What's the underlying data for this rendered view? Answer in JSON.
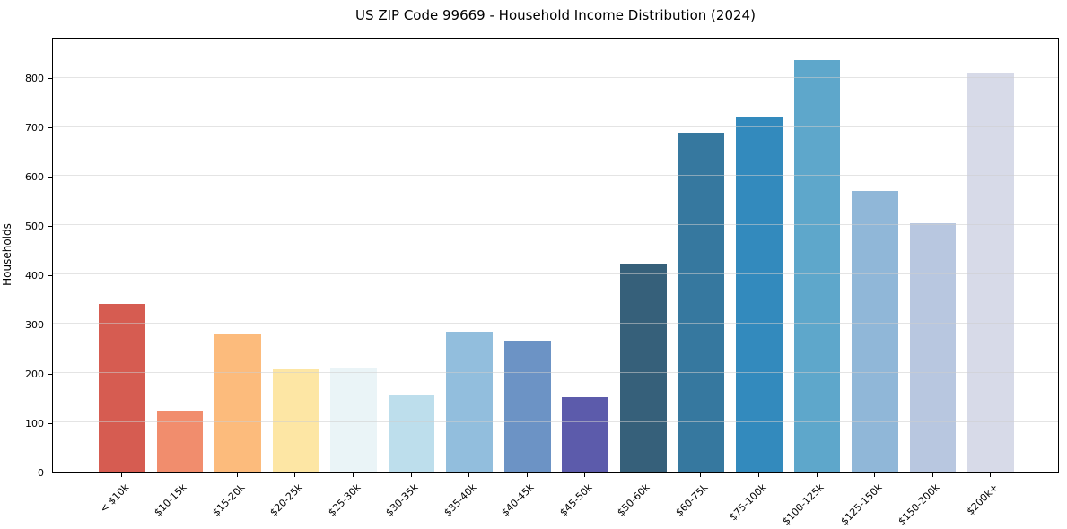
{
  "title": "US ZIP Code 99669 - Household Income Distribution (2024)",
  "chart_data": {
    "type": "bar",
    "title": "US ZIP Code 99669 - Household Income Distribution (2024)",
    "xlabel": "",
    "ylabel": "Households",
    "categories": [
      "< $10k",
      "$10-15k",
      "$15-20k",
      "$20-25k",
      "$25-30k",
      "$30-35k",
      "$35-40k",
      "$40-45k",
      "$45-50k",
      "$50-60k",
      "$60-75k",
      "$75-100k",
      "$100-125k",
      "$125-150k",
      "$150-200k",
      "$200k+"
    ],
    "values": [
      341,
      124,
      279,
      209,
      211,
      155,
      284,
      266,
      152,
      421,
      688,
      721,
      835,
      569,
      505,
      810
    ],
    "bar_colors": [
      "#d65c51",
      "#f18d6d",
      "#fcbb7c",
      "#fde6a4",
      "#eaf4f7",
      "#bddeec",
      "#92bedd",
      "#6c93c5",
      "#5c5bab",
      "#36607a",
      "#36789f",
      "#338abd",
      "#5ea7cb",
      "#90b7d8",
      "#b8c7e0",
      "#d7dae8"
    ],
    "yticks": [
      0,
      100,
      200,
      300,
      400,
      500,
      600,
      700,
      800
    ],
    "ylim": [
      0,
      883
    ],
    "grid": "horizontal-only",
    "gridline_color": "#e8e8e8",
    "background_color": "#ffffff",
    "axis_color": "#000000",
    "legend": "none"
  }
}
